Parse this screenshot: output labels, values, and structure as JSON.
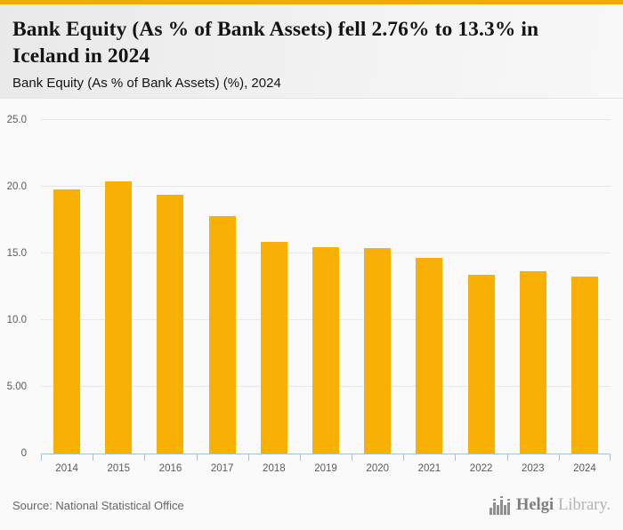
{
  "header": {
    "title": "Bank Equity (As % of Bank Assets) fell 2.76% to 13.3% in Iceland in 2024",
    "subtitle": "Bank Equity (As % of Bank Assets) (%), 2024"
  },
  "colors": {
    "accent_banner": "#F2A900",
    "header_background": "#ECECEC",
    "page_background": "#FAFAFA"
  },
  "chart_data": {
    "type": "bar",
    "title": "Bank Equity (As % of Bank Assets) (%), 2024",
    "categories": [
      "2014",
      "2015",
      "2016",
      "2017",
      "2018",
      "2019",
      "2020",
      "2021",
      "2022",
      "2023",
      "2024"
    ],
    "values": [
      19.8,
      20.4,
      19.4,
      17.8,
      15.9,
      15.5,
      15.4,
      14.7,
      13.4,
      13.7,
      13.3
    ],
    "xlabel": "",
    "ylabel": "",
    "ylim": [
      0,
      25
    ],
    "yticks": [
      {
        "label": "25.0",
        "value": 25
      },
      {
        "label": "20.0",
        "value": 20
      },
      {
        "label": "15.0",
        "value": 15
      },
      {
        "label": "10.0",
        "value": 10
      },
      {
        "label": "5.00",
        "value": 5
      },
      {
        "label": "0",
        "value": 0
      }
    ],
    "grid": true,
    "legend_position": "none",
    "bar_color": "#F9B005",
    "gridline_color": "#E7E7E7",
    "axis_color": "#ABC2D6",
    "tick_text_color": "#5A5A5A"
  },
  "footer": {
    "source": "Source: National Statistical Office",
    "logo": {
      "icon": "bar-chart-logo-icon",
      "text_primary": "Helgi",
      "text_secondary": "Library."
    }
  }
}
